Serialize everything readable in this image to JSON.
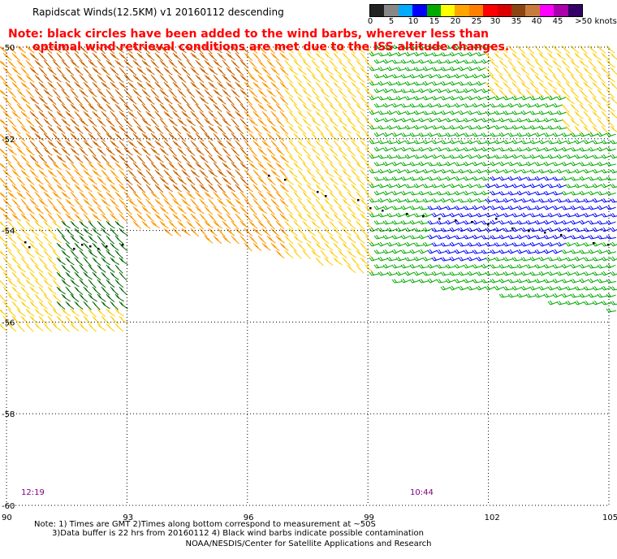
{
  "title": "Rapidscat Winds(12.5KM) v1 20160112 descending",
  "note": {
    "line1": "Note: black circles have been added to the wind barbs, wherever less than",
    "line2": "optimal wind retrieval conditions are met due to the ISS altitude changes."
  },
  "colorbar": {
    "colors": [
      "#222222",
      "#888888",
      "#00aaff",
      "#0000ff",
      "#00aa00",
      "#ffff00",
      "#ffa500",
      "#ff7f00",
      "#ff0000",
      "#dd0000",
      "#8b4513",
      "#c77c3b",
      "#ff00ff",
      "#aa00aa",
      "#330066"
    ],
    "labels": [
      "0",
      "5",
      "10",
      "15",
      "20",
      "25",
      "30",
      "35",
      "40",
      "45",
      ">50 knots"
    ]
  },
  "map": {
    "lon_ticks": [
      "90",
      "93",
      "96",
      "99",
      "102",
      "105"
    ],
    "lat_ticks": [
      "-50",
      "-52",
      "-54",
      "-56",
      "-58",
      "-60"
    ],
    "pass_times": [
      {
        "label": "12:19",
        "color": "#800080"
      },
      {
        "label": "10:44",
        "color": "#800080"
      }
    ],
    "wind_colors": {
      "yellow": "#ffcc00",
      "orange": "#ff9900",
      "brown": "#cc6600",
      "green": "#00aa00",
      "dark_green": "#006600",
      "blue": "#0000ff",
      "flag": "#000000"
    }
  },
  "footer": {
    "line1": "Note: 1) Times are GMT 2)Times along bottom correspond to measurement at ~50S",
    "line2": "3)Data buffer is 22 hrs from 20160112 4) Black wind barbs indicate possible contamination",
    "line3": "NOAA/NESDIS/Center for Satellite Applications and Research"
  }
}
